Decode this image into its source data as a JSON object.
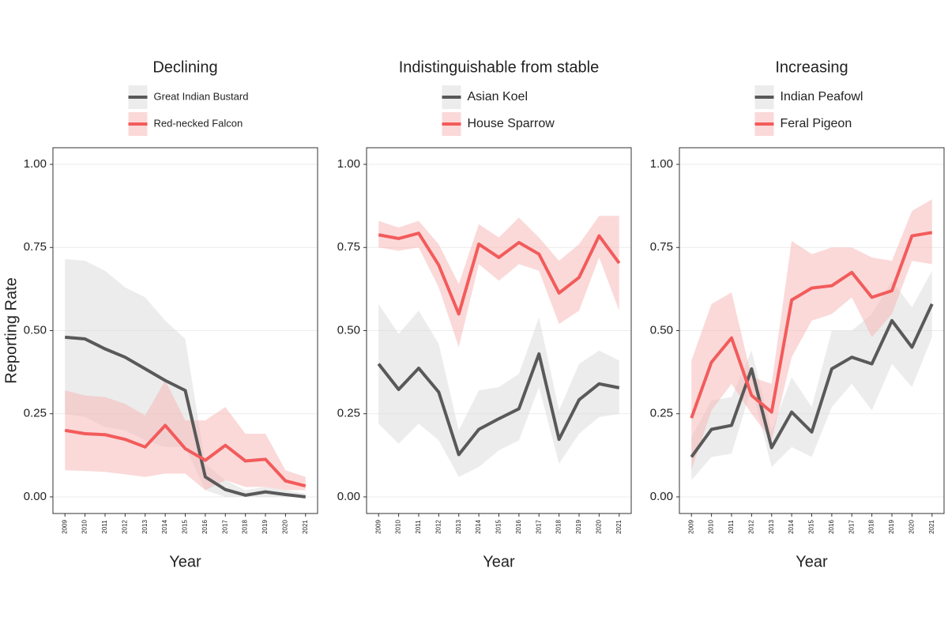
{
  "chart_data": [
    {
      "type": "line",
      "title": "Declining",
      "xlabel": "Year",
      "ylabel": "Reporting Rate",
      "x": [
        2009,
        2010,
        2011,
        2012,
        2013,
        2014,
        2015,
        2016,
        2017,
        2018,
        2019,
        2020,
        2021
      ],
      "xlim": [
        2008.4,
        2021.6
      ],
      "xticks": [
        2009,
        2010,
        2011,
        2012,
        2013,
        2014,
        2015,
        2016,
        2017,
        2018,
        2019,
        2020,
        2021
      ],
      "ylim": [
        -0.05,
        1.05
      ],
      "yticks": [
        {
          "value": 0,
          "label": "0.00"
        },
        {
          "value": 0.25,
          "label": "0.25"
        },
        {
          "value": 0.5,
          "label": "0.50"
        },
        {
          "value": 0.75,
          "label": "0.75"
        },
        {
          "value": 1,
          "label": "1.00"
        }
      ],
      "grid": true,
      "series": [
        {
          "name": "Great Indian Bustard",
          "color": "#595959",
          "band_color": "#d9d9d9",
          "values": [
            0.48,
            0.475,
            0.445,
            0.42,
            0.385,
            0.35,
            0.32,
            0.06,
            0.022,
            0.005,
            0.015,
            0.007,
            0.0
          ],
          "lower": [
            0.25,
            0.24,
            0.21,
            0.2,
            0.17,
            0.15,
            0.15,
            0.02,
            0.0,
            0.0,
            0.0,
            0.0,
            0.0
          ],
          "upper": [
            0.715,
            0.71,
            0.68,
            0.63,
            0.6,
            0.53,
            0.475,
            0.1,
            0.05,
            0.02,
            0.03,
            0.02,
            0.01
          ]
        },
        {
          "name": "Red-necked Falcon",
          "color": "#f35b5b",
          "band_color": "#f8b4b4",
          "values": [
            0.2,
            0.19,
            0.187,
            0.173,
            0.15,
            0.215,
            0.145,
            0.11,
            0.155,
            0.108,
            0.113,
            0.048,
            0.033
          ],
          "lower": [
            0.08,
            0.078,
            0.075,
            0.068,
            0.06,
            0.07,
            0.07,
            0.02,
            0.05,
            0.03,
            0.03,
            0.02,
            0.02
          ],
          "upper": [
            0.32,
            0.305,
            0.3,
            0.28,
            0.245,
            0.35,
            0.23,
            0.23,
            0.27,
            0.19,
            0.19,
            0.08,
            0.06
          ]
        }
      ]
    },
    {
      "type": "line",
      "title": "Indistinguishable from stable",
      "xlabel": "Year",
      "x": [
        2009,
        2010,
        2011,
        2012,
        2013,
        2014,
        2015,
        2016,
        2017,
        2018,
        2019,
        2020,
        2021
      ],
      "xlim": [
        2008.4,
        2021.6
      ],
      "xticks": [
        2009,
        2010,
        2011,
        2012,
        2013,
        2014,
        2015,
        2016,
        2017,
        2018,
        2019,
        2020,
        2021
      ],
      "ylim": [
        -0.05,
        1.05
      ],
      "yticks": [
        {
          "value": 0,
          "label": "0.00"
        },
        {
          "value": 0.25,
          "label": "0.25"
        },
        {
          "value": 0.5,
          "label": "0.50"
        },
        {
          "value": 0.75,
          "label": "0.75"
        },
        {
          "value": 1,
          "label": "1.00"
        }
      ],
      "grid": true,
      "series": [
        {
          "name": "Asian Koel",
          "color": "#595959",
          "band_color": "#d9d9d9",
          "values": [
            0.4,
            0.323,
            0.387,
            0.315,
            0.127,
            0.203,
            0.235,
            0.265,
            0.43,
            0.173,
            0.292,
            0.34,
            0.328
          ],
          "lower": [
            0.22,
            0.16,
            0.22,
            0.17,
            0.06,
            0.09,
            0.14,
            0.17,
            0.33,
            0.1,
            0.19,
            0.24,
            0.25
          ],
          "upper": [
            0.58,
            0.49,
            0.56,
            0.46,
            0.2,
            0.32,
            0.33,
            0.37,
            0.54,
            0.26,
            0.4,
            0.44,
            0.41
          ]
        },
        {
          "name": "House Sparrow",
          "color": "#f35b5b",
          "band_color": "#f8b4b4",
          "values": [
            0.788,
            0.777,
            0.793,
            0.697,
            0.55,
            0.76,
            0.72,
            0.765,
            0.73,
            0.613,
            0.66,
            0.785,
            0.703
          ],
          "lower": [
            0.75,
            0.74,
            0.75,
            0.63,
            0.45,
            0.7,
            0.65,
            0.7,
            0.68,
            0.52,
            0.56,
            0.72,
            0.56
          ],
          "upper": [
            0.83,
            0.81,
            0.83,
            0.76,
            0.64,
            0.82,
            0.78,
            0.84,
            0.78,
            0.71,
            0.76,
            0.845,
            0.845
          ]
        }
      ]
    },
    {
      "type": "line",
      "title": "Increasing",
      "xlabel": "Year",
      "x": [
        2009,
        2010,
        2011,
        2012,
        2013,
        2014,
        2015,
        2016,
        2017,
        2018,
        2019,
        2020,
        2021
      ],
      "xlim": [
        2008.4,
        2021.6
      ],
      "xticks": [
        2009,
        2010,
        2011,
        2012,
        2013,
        2014,
        2015,
        2016,
        2017,
        2018,
        2019,
        2020,
        2021
      ],
      "ylim": [
        -0.05,
        1.05
      ],
      "yticks": [
        {
          "value": 0,
          "label": "0.00"
        },
        {
          "value": 0.25,
          "label": "0.25"
        },
        {
          "value": 0.5,
          "label": "0.50"
        },
        {
          "value": 0.75,
          "label": "0.75"
        },
        {
          "value": 1,
          "label": "1.00"
        }
      ],
      "grid": true,
      "series": [
        {
          "name": "Indian Peafowl",
          "color": "#595959",
          "band_color": "#d9d9d9",
          "values": [
            0.12,
            0.203,
            0.215,
            0.385,
            0.148,
            0.255,
            0.195,
            0.385,
            0.42,
            0.4,
            0.53,
            0.45,
            0.58
          ],
          "lower": [
            0.05,
            0.12,
            0.13,
            0.33,
            0.09,
            0.15,
            0.12,
            0.27,
            0.34,
            0.26,
            0.4,
            0.33,
            0.48
          ],
          "upper": [
            0.18,
            0.29,
            0.3,
            0.44,
            0.2,
            0.36,
            0.27,
            0.5,
            0.5,
            0.55,
            0.65,
            0.57,
            0.68
          ]
        },
        {
          "name": "Feral Pigeon",
          "color": "#f35b5b",
          "band_color": "#f8b4b4",
          "values": [
            0.237,
            0.405,
            0.478,
            0.305,
            0.255,
            0.592,
            0.628,
            0.635,
            0.675,
            0.6,
            0.62,
            0.785,
            0.795
          ],
          "lower": [
            0.08,
            0.26,
            0.34,
            0.25,
            0.17,
            0.42,
            0.53,
            0.55,
            0.6,
            0.48,
            0.55,
            0.71,
            0.7
          ],
          "upper": [
            0.41,
            0.58,
            0.615,
            0.36,
            0.34,
            0.77,
            0.73,
            0.75,
            0.75,
            0.72,
            0.71,
            0.86,
            0.895
          ]
        }
      ]
    }
  ]
}
